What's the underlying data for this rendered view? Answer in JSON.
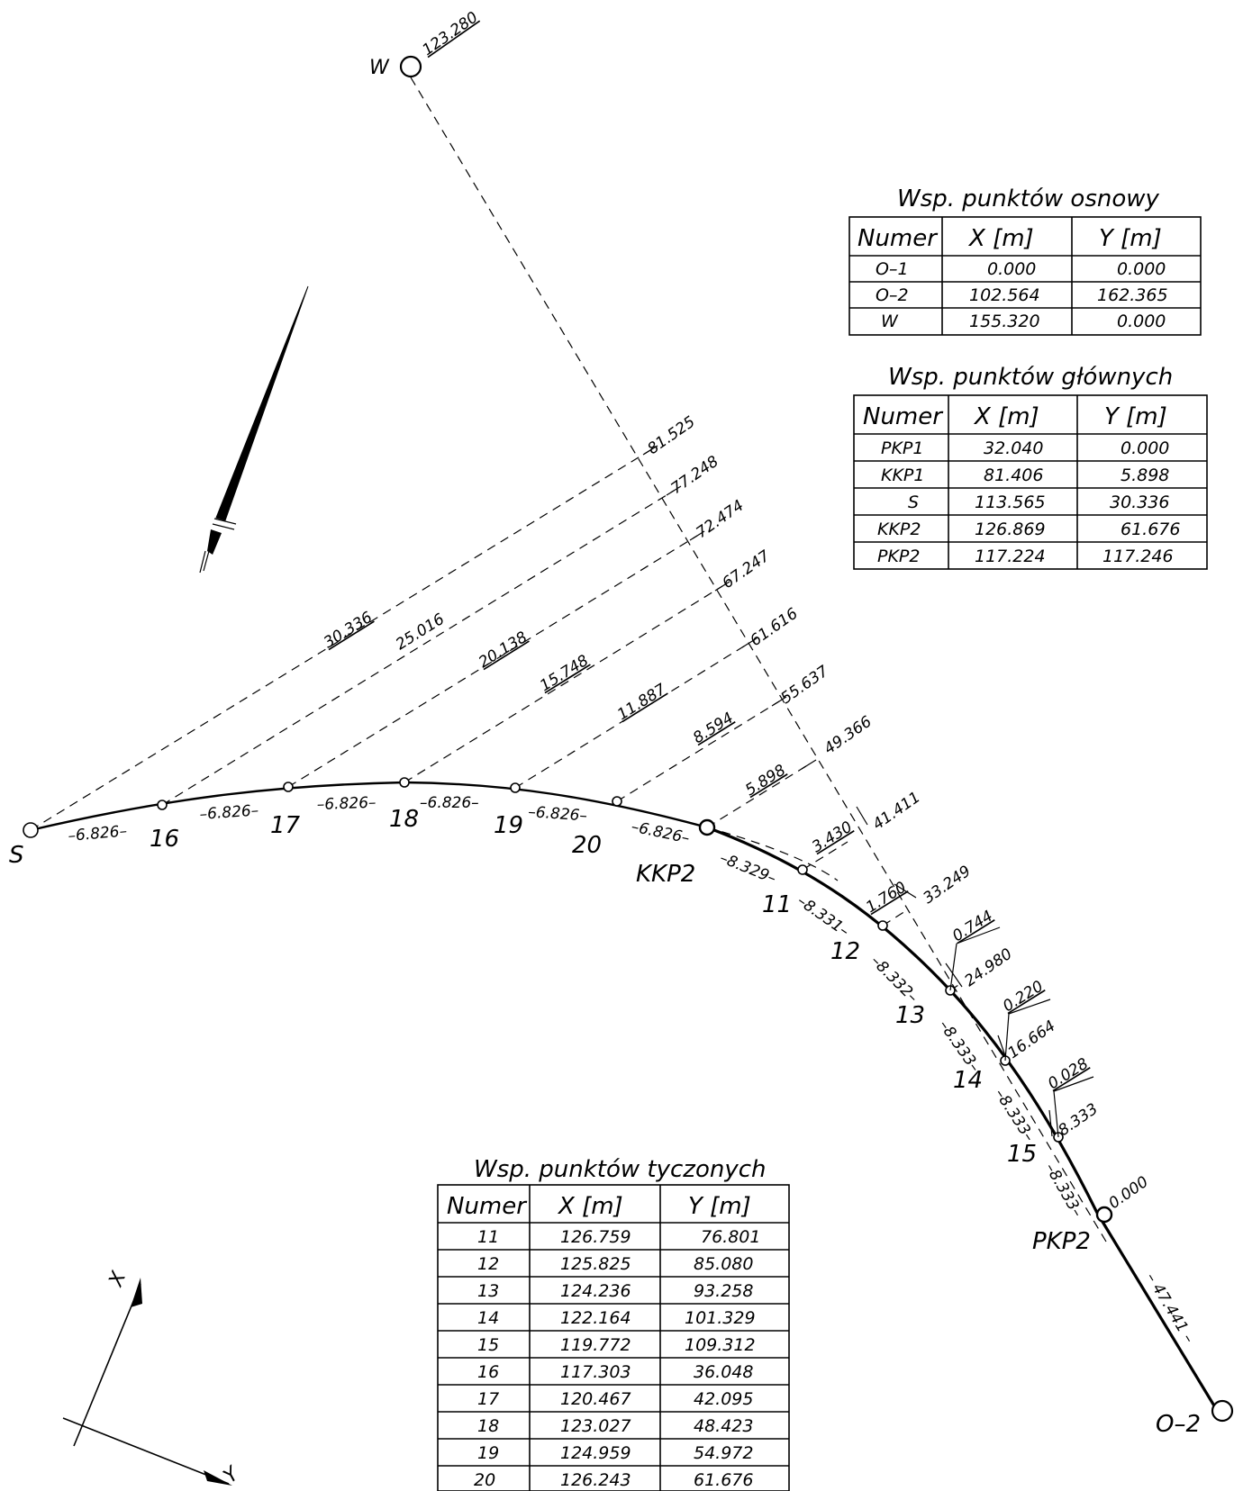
{
  "points": {
    "W": {
      "label": "W",
      "value": "123.280"
    },
    "S": {
      "label": "S"
    },
    "O2": {
      "label": "O–2"
    },
    "KKP2": {
      "label": "KKP2"
    },
    "PKP2": {
      "label": "PKP2"
    }
  },
  "stake_labels": [
    "16",
    "17",
    "18",
    "19",
    "20",
    "11",
    "12",
    "13",
    "14",
    "15"
  ],
  "abscissa_values": [
    "81.525",
    "77.248",
    "72.474",
    "67.247",
    "61.616",
    "55.637",
    "49.366",
    "41.411",
    "33.249",
    "24.980",
    "16.664",
    "8.333",
    "0.000"
  ],
  "ordinate_values": [
    "30.336",
    "25.016",
    "20.138",
    "15.748",
    "11.887",
    "8.594",
    "5.898",
    "3.430",
    "1.760",
    "0.744",
    "0.220",
    "0.028"
  ],
  "chord_values": [
    "–6.826–",
    "–6.826–",
    "–6.826–",
    "–6.826–",
    "–6.826–",
    "–6.826–",
    "–6.826–",
    "–8.329–",
    "–8.331–",
    "–8.332–",
    "–8.333–",
    "–8.333–",
    "–8.333–"
  ],
  "tangent_value": "– 47.441 –",
  "axis": {
    "x": "X",
    "y": "Y"
  },
  "table_osnowa": {
    "title": "Wsp.  punktów  osnowy",
    "headers": [
      "Numer",
      "X [m]",
      "Y [m]"
    ],
    "rows": [
      [
        "O–1",
        "0.000",
        "0.000"
      ],
      [
        "O–2",
        "102.564",
        "162.365"
      ],
      [
        "W",
        "155.320",
        "0.000"
      ]
    ]
  },
  "table_glowne": {
    "title": "Wsp.  punktów  głównych",
    "headers": [
      "Numer",
      "X [m]",
      "Y [m]"
    ],
    "rows": [
      [
        "PKP1",
        "32.040",
        "0.000"
      ],
      [
        "KKP1",
        "81.406",
        "5.898"
      ],
      [
        "S",
        "113.565",
        "30.336"
      ],
      [
        "KKP2",
        "126.869",
        "61.676"
      ],
      [
        "PKP2",
        "117.224",
        "117.246"
      ]
    ]
  },
  "table_tyczone": {
    "title": "Wsp.  punktów  tyczonych",
    "headers": [
      "Numer",
      "X [m]",
      "Y [m]"
    ],
    "rows": [
      [
        "11",
        "126.759",
        "76.801"
      ],
      [
        "12",
        "125.825",
        "85.080"
      ],
      [
        "13",
        "124.236",
        "93.258"
      ],
      [
        "14",
        "122.164",
        "101.329"
      ],
      [
        "15",
        "119.772",
        "109.312"
      ],
      [
        "16",
        "117.303",
        "36.048"
      ],
      [
        "17",
        "120.467",
        "42.095"
      ],
      [
        "18",
        "123.027",
        "48.423"
      ],
      [
        "19",
        "124.959",
        "54.972"
      ],
      [
        "20",
        "126.243",
        "61.676"
      ]
    ]
  }
}
